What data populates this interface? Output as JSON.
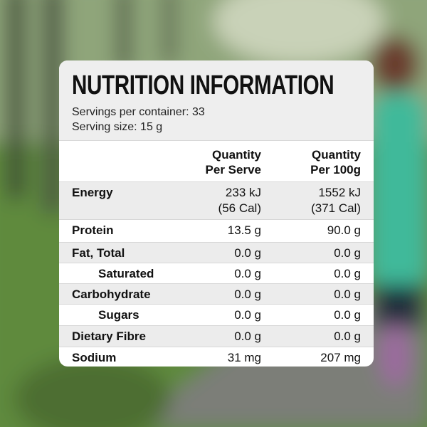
{
  "header": {
    "title": "NUTRITION INFORMATION",
    "servings": "Servings per container: 33",
    "serving_size": "Serving size: 15 g"
  },
  "table": {
    "columns": [
      [
        "Quantity",
        "Per Serve"
      ],
      [
        "Quantity",
        "Per 100g"
      ]
    ],
    "rows": [
      [
        "Energy",
        [
          "233 kJ",
          "(56 Cal)"
        ],
        [
          "1552 kJ",
          "(371 Cal)"
        ]
      ],
      [
        "Protein",
        [
          "13.5 g"
        ],
        [
          "90.0 g"
        ]
      ],
      [
        "Fat, Total",
        [
          "0.0 g"
        ],
        [
          "0.0 g"
        ]
      ],
      [
        "Saturated",
        [
          "0.0 g"
        ],
        [
          "0.0 g"
        ]
      ],
      [
        "Carbohydrate",
        [
          "0.0 g"
        ],
        [
          "0.0 g"
        ]
      ],
      [
        "Sugars",
        [
          "0.0 g"
        ],
        [
          "0.0 g"
        ]
      ],
      [
        "Dietary Fibre",
        [
          "0.0 g"
        ],
        [
          "0.0 g"
        ]
      ],
      [
        "Sodium",
        [
          "31 mg"
        ],
        [
          "207 mg"
        ]
      ]
    ]
  }
}
